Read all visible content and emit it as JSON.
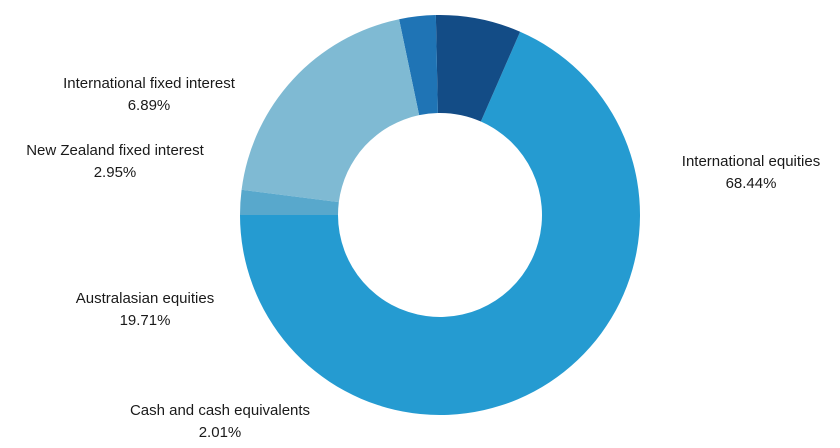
{
  "chart_data": {
    "type": "pie",
    "donut": true,
    "title": "",
    "start_angle_deg": 180,
    "direction": "counterclockwise-from-left",
    "slices": [
      {
        "key": "international-equities",
        "label": "International equities",
        "value": 68.44,
        "value_text": "68.44%",
        "color": "#259bd1"
      },
      {
        "key": "international-fixed",
        "label": "International fixed interest",
        "value": 6.89,
        "value_text": "6.89%",
        "color": "#134c86"
      },
      {
        "key": "nz-fixed",
        "label": "New Zealand fixed interest",
        "value": 2.95,
        "value_text": "2.95%",
        "color": "#1f74b5"
      },
      {
        "key": "australasian-equities",
        "label": "Australasian equities",
        "value": 19.71,
        "value_text": "19.71%",
        "color": "#7fbad3"
      },
      {
        "key": "cash",
        "label": "Cash and cash equivalents",
        "value": 2.01,
        "value_text": "2.01%",
        "color": "#58a8cc"
      }
    ]
  }
}
